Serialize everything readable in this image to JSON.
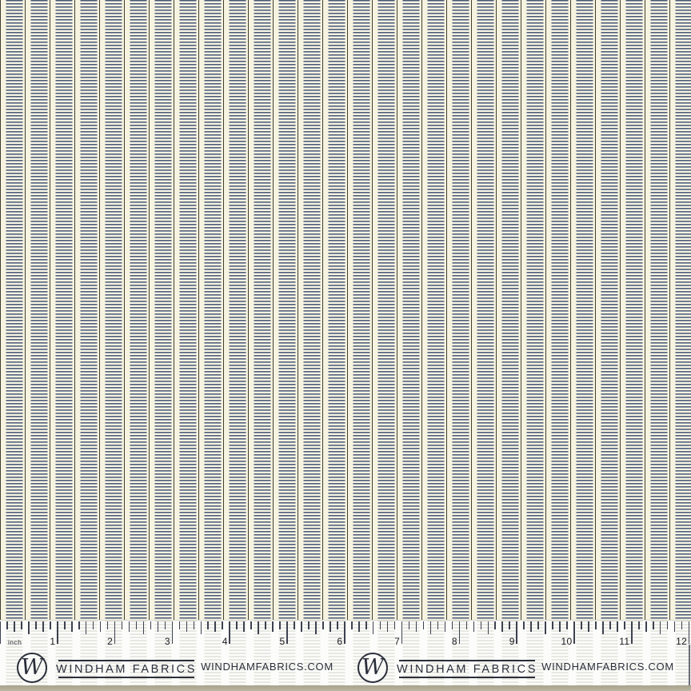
{
  "colors": {
    "cream": "#f6f3e0",
    "dash_dark": "#4b5770",
    "dash_light": "#9ba5b7",
    "selvage": "#fcfcfa",
    "ink": "#2a2e3a",
    "digit": "#1a1a20",
    "edge_tan_dark": "#a8a38d",
    "edge_tan_light": "#bdb8a2"
  },
  "fabric": {
    "description": "cream ticking stripe fabric with vertical ladder columns of blue-gray horizontal dashes separated by thin dark pin lines"
  },
  "ruler": {
    "unit_label": "inch",
    "inches": 12,
    "divisions_per_inch": 8,
    "numbers": [
      "1",
      "2",
      "3",
      "4",
      "5",
      "6",
      "7",
      "8",
      "9",
      "10",
      "11",
      "12"
    ]
  },
  "branding": {
    "logo_monogram": "W",
    "wordmark": "WINDHAM FABRICS",
    "website": "WINDHAMFABRICS.COM",
    "repeats": 2
  }
}
